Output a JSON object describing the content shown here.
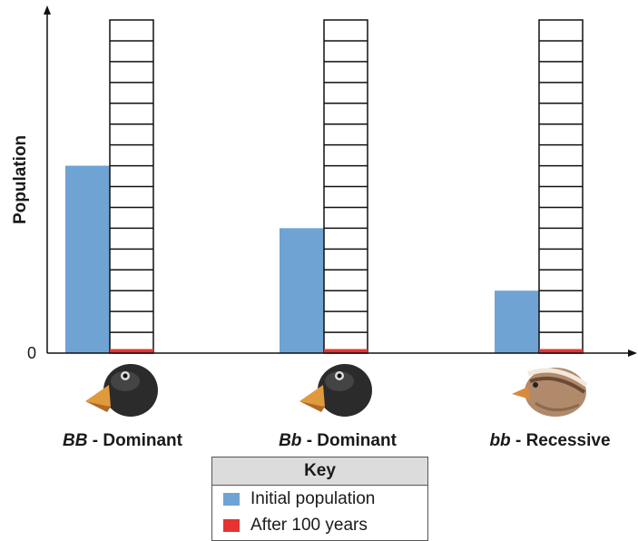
{
  "chart_data": {
    "type": "bar",
    "ylabel": "Population",
    "xlabel": "",
    "y_tick_labels": [
      "0"
    ],
    "ylim": [
      0,
      16
    ],
    "categories": [
      {
        "genotype": "BB",
        "phenotype": "Dominant",
        "bird_icon": "dark-finch-icon"
      },
      {
        "genotype": "Bb",
        "phenotype": "Dominant",
        "bird_icon": "dark-finch-icon"
      },
      {
        "genotype": "bb",
        "phenotype": "Recessive",
        "bird_icon": "brown-sparrow-icon"
      }
    ],
    "series": [
      {
        "name": "Initial population",
        "color": "#6fa3d4",
        "values": [
          9,
          6,
          3
        ]
      },
      {
        "name": "After 100 years",
        "color": "#e63232",
        "values": [
          0.15,
          0.15,
          0.15
        ]
      }
    ],
    "grid_columns_rows": 16,
    "legend_position": "bottom-center"
  },
  "key": {
    "title": "Key",
    "items": [
      {
        "label": "Initial population",
        "color": "#6fa3d4"
      },
      {
        "label": "After 100 years",
        "color": "#e63232"
      }
    ]
  }
}
